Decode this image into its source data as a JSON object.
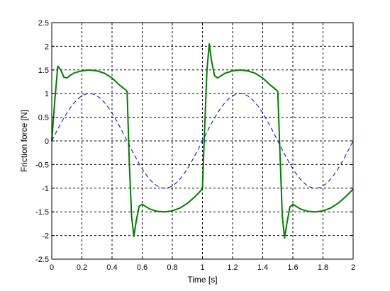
{
  "chart_data": {
    "type": "line",
    "xlabel": "Time [s]",
    "ylabel": "Friction force [N]",
    "xlim": [
      0,
      2
    ],
    "ylim": [
      -2.5,
      2.5
    ],
    "x_ticks": [
      0,
      0.2,
      0.4,
      0.6,
      0.8,
      1,
      1.2,
      1.4,
      1.6,
      1.8,
      2
    ],
    "x_tick_labels": [
      "0",
      "0.2",
      "0.4",
      "0.6",
      "0.8",
      "1",
      "1.2",
      "1.4",
      "1.6",
      "1.8",
      "2"
    ],
    "y_ticks": [
      -2.5,
      -2,
      -1.5,
      -1,
      -0.5,
      0,
      0.5,
      1,
      1.5,
      2,
      2.5
    ],
    "y_tick_labels": [
      "-2.5",
      "-2",
      "-1.5",
      "-1",
      "-0.5",
      "0",
      "0.5",
      "1",
      "1.5",
      "2",
      "2.5"
    ],
    "grid": true,
    "series": [
      {
        "style": "solid",
        "color": "#007f00",
        "points": [
          [
            0,
            0
          ],
          [
            0.02,
            0.85
          ],
          [
            0.04,
            1.58
          ],
          [
            0.06,
            1.5
          ],
          [
            0.08,
            1.35
          ],
          [
            0.1,
            1.33
          ],
          [
            0.12,
            1.38
          ],
          [
            0.15,
            1.44
          ],
          [
            0.2,
            1.48
          ],
          [
            0.25,
            1.5
          ],
          [
            0.3,
            1.48
          ],
          [
            0.35,
            1.43
          ],
          [
            0.4,
            1.33
          ],
          [
            0.45,
            1.18
          ],
          [
            0.49,
            1.08
          ],
          [
            0.5,
            1.05
          ],
          [
            0.515,
            -0.5
          ],
          [
            0.53,
            -1.6
          ],
          [
            0.545,
            -2.02
          ],
          [
            0.56,
            -1.7
          ],
          [
            0.58,
            -1.38
          ],
          [
            0.6,
            -1.34
          ],
          [
            0.62,
            -1.38
          ],
          [
            0.65,
            -1.44
          ],
          [
            0.7,
            -1.49
          ],
          [
            0.75,
            -1.5
          ],
          [
            0.8,
            -1.48
          ],
          [
            0.85,
            -1.42
          ],
          [
            0.9,
            -1.32
          ],
          [
            0.95,
            -1.18
          ],
          [
            0.99,
            -1.05
          ],
          [
            1.0,
            -1.0
          ],
          [
            1.015,
            0.3
          ],
          [
            1.03,
            1.5
          ],
          [
            1.045,
            2.05
          ],
          [
            1.06,
            1.7
          ],
          [
            1.08,
            1.38
          ],
          [
            1.1,
            1.33
          ],
          [
            1.12,
            1.37
          ],
          [
            1.15,
            1.43
          ],
          [
            1.2,
            1.48
          ],
          [
            1.25,
            1.5
          ],
          [
            1.3,
            1.48
          ],
          [
            1.35,
            1.43
          ],
          [
            1.4,
            1.33
          ],
          [
            1.45,
            1.18
          ],
          [
            1.49,
            1.08
          ],
          [
            1.5,
            1.04
          ],
          [
            1.515,
            -0.3
          ],
          [
            1.53,
            -1.6
          ],
          [
            1.545,
            -2.05
          ],
          [
            1.56,
            -1.75
          ],
          [
            1.58,
            -1.4
          ],
          [
            1.6,
            -1.34
          ],
          [
            1.62,
            -1.38
          ],
          [
            1.65,
            -1.44
          ],
          [
            1.7,
            -1.49
          ],
          [
            1.75,
            -1.5
          ],
          [
            1.8,
            -1.48
          ],
          [
            1.85,
            -1.42
          ],
          [
            1.9,
            -1.32
          ],
          [
            1.95,
            -1.18
          ],
          [
            2.0,
            -1.02
          ]
        ]
      },
      {
        "style": "dashed",
        "color": "#0000cc",
        "function": "sin(2*pi*t)",
        "amplitude": 1,
        "period": 1
      }
    ]
  }
}
